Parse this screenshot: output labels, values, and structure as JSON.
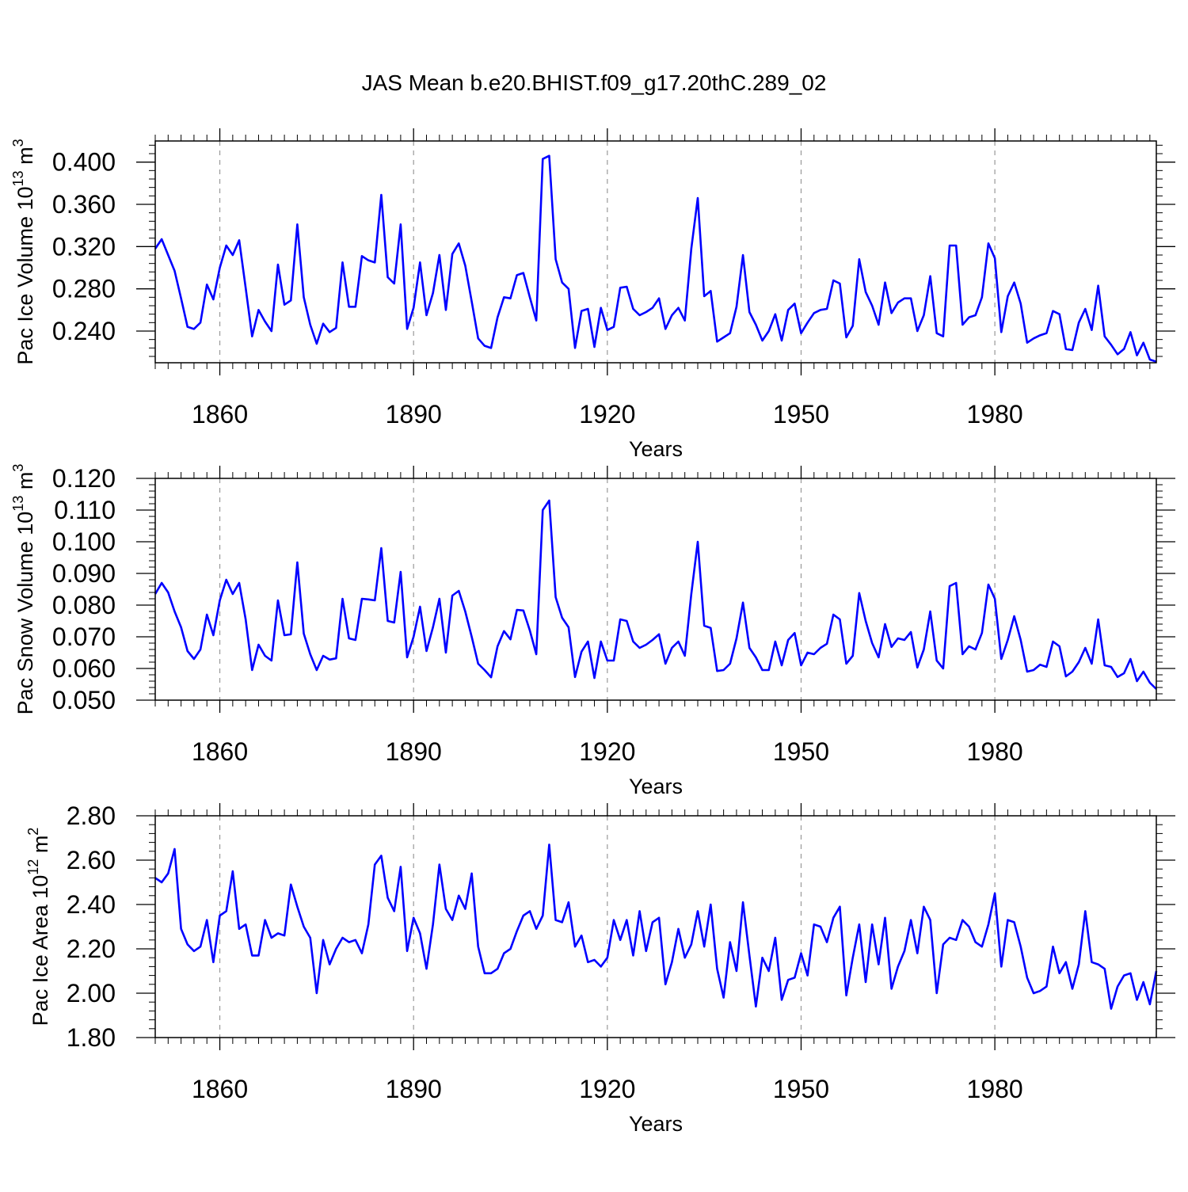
{
  "figure_title": "JAS Mean b.e20.BHIST.f09_g17.20thC.289_02",
  "colors": {
    "line": "#0000ff",
    "axis": "#000000",
    "grid": "#999999"
  },
  "chart_data": [
    {
      "type": "line",
      "title": "JAS Mean b.e20.BHIST.f09_g17.20thC.289_02",
      "xlabel": "Years",
      "ylabel": "Pac Ice Volume 10",
      "ylabel_exp": "13",
      "ylabel_unit": "m",
      "ylabel_unit_exp": "3",
      "xlim": [
        1850,
        2005
      ],
      "ylim": [
        0.21,
        0.42
      ],
      "yticks": [
        0.24,
        0.28,
        0.32,
        0.36,
        0.4
      ],
      "ytick_labels": [
        "0.240",
        "0.280",
        "0.320",
        "0.360",
        "0.400"
      ],
      "xticks": [
        1860,
        1890,
        1920,
        1950,
        1980
      ],
      "xtick_labels": [
        "1860",
        "1890",
        "1920",
        "1950",
        "1980"
      ],
      "x_start": 1850,
      "values": [
        0.318,
        0.327,
        0.312,
        0.297,
        0.271,
        0.244,
        0.242,
        0.248,
        0.284,
        0.27,
        0.3,
        0.321,
        0.312,
        0.326,
        0.281,
        0.235,
        0.26,
        0.249,
        0.24,
        0.303,
        0.265,
        0.269,
        0.341,
        0.272,
        0.246,
        0.228,
        0.247,
        0.239,
        0.243,
        0.305,
        0.263,
        0.263,
        0.311,
        0.307,
        0.305,
        0.369,
        0.291,
        0.285,
        0.341,
        0.242,
        0.262,
        0.305,
        0.255,
        0.276,
        0.312,
        0.26,
        0.313,
        0.323,
        0.302,
        0.268,
        0.233,
        0.226,
        0.224,
        0.253,
        0.272,
        0.271,
        0.293,
        0.295,
        0.272,
        0.25,
        0.403,
        0.406,
        0.308,
        0.286,
        0.28,
        0.224,
        0.259,
        0.261,
        0.225,
        0.262,
        0.241,
        0.244,
        0.281,
        0.282,
        0.261,
        0.255,
        0.258,
        0.262,
        0.271,
        0.242,
        0.255,
        0.262,
        0.25,
        0.318,
        0.366,
        0.273,
        0.278,
        0.23,
        0.234,
        0.238,
        0.263,
        0.312,
        0.258,
        0.246,
        0.231,
        0.24,
        0.256,
        0.231,
        0.26,
        0.266,
        0.238,
        0.248,
        0.257,
        0.26,
        0.261,
        0.288,
        0.285,
        0.234,
        0.245,
        0.308,
        0.277,
        0.264,
        0.246,
        0.286,
        0.257,
        0.267,
        0.271,
        0.271,
        0.24,
        0.255,
        0.292,
        0.238,
        0.235,
        0.321,
        0.321,
        0.246,
        0.253,
        0.255,
        0.272,
        0.323,
        0.309,
        0.239,
        0.273,
        0.286,
        0.266,
        0.229,
        0.233,
        0.236,
        0.238,
        0.259,
        0.256,
        0.223,
        0.222,
        0.248,
        0.261,
        0.241,
        0.283,
        0.235,
        0.227,
        0.218,
        0.223,
        0.239,
        0.217,
        0.229,
        0.213,
        0.211
      ]
    },
    {
      "type": "line",
      "xlabel": "Years",
      "ylabel": "Pac Snow Volume 10",
      "ylabel_exp": "13",
      "ylabel_unit": "m",
      "ylabel_unit_exp": "3",
      "xlim": [
        1850,
        2005
      ],
      "ylim": [
        0.05,
        0.12
      ],
      "yticks": [
        0.05,
        0.06,
        0.07,
        0.08,
        0.09,
        0.1,
        0.11,
        0.12
      ],
      "ytick_labels": [
        "0.050",
        "0.060",
        "0.070",
        "0.080",
        "0.090",
        "0.100",
        "0.110",
        "0.120"
      ],
      "xticks": [
        1860,
        1890,
        1920,
        1950,
        1980
      ],
      "xtick_labels": [
        "1860",
        "1890",
        "1920",
        "1950",
        "1980"
      ],
      "x_start": 1850,
      "values": [
        0.0835,
        0.087,
        0.084,
        0.078,
        0.073,
        0.0655,
        0.063,
        0.066,
        0.077,
        0.0705,
        0.0815,
        0.088,
        0.0835,
        0.087,
        0.0755,
        0.0595,
        0.0675,
        0.064,
        0.0625,
        0.0815,
        0.0705,
        0.0708,
        0.0935,
        0.071,
        0.0645,
        0.0595,
        0.064,
        0.0628,
        0.0632,
        0.082,
        0.0695,
        0.069,
        0.082,
        0.0818,
        0.0815,
        0.098,
        0.075,
        0.0745,
        0.0905,
        0.0635,
        0.07,
        0.0795,
        0.0655,
        0.073,
        0.082,
        0.065,
        0.083,
        0.0845,
        0.078,
        0.07,
        0.0615,
        0.0595,
        0.0572,
        0.067,
        0.0718,
        0.0692,
        0.0785,
        0.0783,
        0.072,
        0.0645,
        0.11,
        0.113,
        0.0825,
        0.076,
        0.073,
        0.0573,
        0.0653,
        0.0685,
        0.057,
        0.0685,
        0.0625,
        0.0625,
        0.0755,
        0.075,
        0.0685,
        0.0665,
        0.0675,
        0.069,
        0.0708,
        0.0615,
        0.0665,
        0.0685,
        0.064,
        0.0835,
        0.1,
        0.0735,
        0.0728,
        0.0592,
        0.0595,
        0.0615,
        0.0695,
        0.0808,
        0.0665,
        0.0635,
        0.0595,
        0.0595,
        0.0685,
        0.061,
        0.069,
        0.0712,
        0.061,
        0.065,
        0.0645,
        0.0665,
        0.0678,
        0.077,
        0.0755,
        0.0615,
        0.064,
        0.0838,
        0.075,
        0.068,
        0.0635,
        0.074,
        0.0668,
        0.0695,
        0.069,
        0.0715,
        0.0603,
        0.066,
        0.078,
        0.0625,
        0.06,
        0.086,
        0.087,
        0.0645,
        0.067,
        0.066,
        0.0712,
        0.0865,
        0.082,
        0.063,
        0.069,
        0.0765,
        0.069,
        0.059,
        0.0595,
        0.0612,
        0.0605,
        0.0685,
        0.067,
        0.0575,
        0.059,
        0.062,
        0.0665,
        0.0615,
        0.0755,
        0.061,
        0.0605,
        0.0573,
        0.0585,
        0.063,
        0.056,
        0.059,
        0.0555,
        0.0535
      ]
    },
    {
      "type": "line",
      "xlabel": "Years",
      "ylabel": "Pac Ice Area 10",
      "ylabel_exp": "12",
      "ylabel_unit": "m",
      "ylabel_unit_exp": "2",
      "xlim": [
        1850,
        2005
      ],
      "ylim": [
        1.8,
        2.8
      ],
      "yticks": [
        1.8,
        2.0,
        2.2,
        2.4,
        2.6,
        2.8
      ],
      "ytick_labels": [
        "1.80",
        "2.00",
        "2.20",
        "2.40",
        "2.60",
        "2.80"
      ],
      "xticks": [
        1860,
        1890,
        1920,
        1950,
        1980
      ],
      "xtick_labels": [
        "1860",
        "1890",
        "1920",
        "1950",
        "1980"
      ],
      "x_start": 1850,
      "values": [
        2.52,
        2.5,
        2.54,
        2.65,
        2.29,
        2.22,
        2.19,
        2.21,
        2.33,
        2.14,
        2.35,
        2.37,
        2.55,
        2.29,
        2.31,
        2.17,
        2.17,
        2.33,
        2.25,
        2.27,
        2.26,
        2.49,
        2.39,
        2.3,
        2.25,
        2.0,
        2.24,
        2.13,
        2.2,
        2.25,
        2.23,
        2.24,
        2.18,
        2.31,
        2.58,
        2.62,
        2.43,
        2.37,
        2.57,
        2.19,
        2.34,
        2.27,
        2.11,
        2.31,
        2.58,
        2.38,
        2.33,
        2.44,
        2.38,
        2.54,
        2.21,
        2.09,
        2.09,
        2.11,
        2.18,
        2.2,
        2.28,
        2.35,
        2.37,
        2.29,
        2.35,
        2.67,
        2.33,
        2.32,
        2.41,
        2.21,
        2.26,
        2.14,
        2.15,
        2.12,
        2.16,
        2.33,
        2.24,
        2.33,
        2.17,
        2.37,
        2.19,
        2.32,
        2.34,
        2.04,
        2.14,
        2.29,
        2.16,
        2.22,
        2.37,
        2.21,
        2.4,
        2.11,
        1.98,
        2.23,
        2.1,
        2.41,
        2.17,
        1.94,
        2.16,
        2.1,
        2.25,
        1.97,
        2.06,
        2.07,
        2.18,
        2.08,
        2.31,
        2.3,
        2.23,
        2.34,
        2.39,
        1.99,
        2.16,
        2.31,
        2.05,
        2.31,
        2.13,
        2.34,
        2.02,
        2.12,
        2.19,
        2.33,
        2.18,
        2.39,
        2.33,
        2.0,
        2.22,
        2.25,
        2.24,
        2.33,
        2.3,
        2.23,
        2.21,
        2.31,
        2.45,
        2.12,
        2.33,
        2.32,
        2.21,
        2.07,
        2.0,
        2.01,
        2.03,
        2.21,
        2.09,
        2.14,
        2.02,
        2.13,
        2.37,
        2.14,
        2.13,
        2.11,
        1.93,
        2.03,
        2.08,
        2.09,
        1.97,
        2.05,
        1.95,
        2.1
      ]
    }
  ]
}
